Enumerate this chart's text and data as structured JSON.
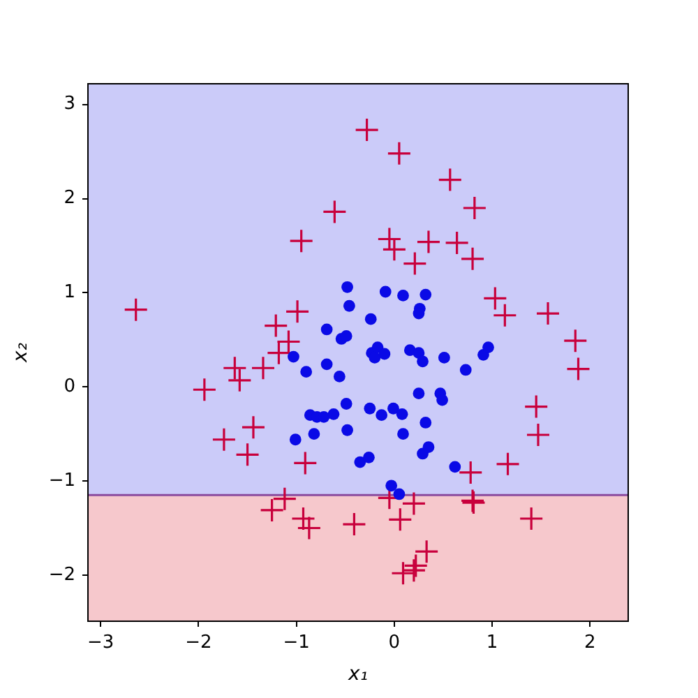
{
  "chart_data": {
    "type": "scatter",
    "xlabel": "x₁",
    "ylabel": "x₂",
    "xlim": [
      -3.13,
      2.39
    ],
    "ylim": [
      -2.49,
      3.22
    ],
    "xticks": [
      -3,
      -2,
      -1,
      0,
      1,
      2
    ],
    "yticks": [
      -2,
      -1,
      0,
      1,
      2,
      3
    ],
    "bands": [
      {
        "axis": "y",
        "from": -2.49,
        "to": -1.15,
        "color": "#f6c8cc"
      },
      {
        "axis": "y",
        "from": -1.15,
        "to": 3.22,
        "color": "#cbcbf9"
      }
    ],
    "ref_lines": [
      {
        "axis": "y",
        "value": -1.15,
        "color": "#8a4a9e"
      }
    ],
    "series": [
      {
        "color": "#0a0ae6",
        "marker": "circle",
        "x": [
          -0.69,
          -0.54,
          -0.49,
          -1.03,
          -0.9,
          -0.69,
          -0.56,
          -0.49,
          -0.86,
          -0.79,
          -0.72,
          -0.62,
          -0.82,
          -1.01,
          -0.48,
          -0.35,
          -0.26,
          -0.48,
          -0.46,
          -0.09,
          0.09,
          0.32,
          0.26,
          0.25,
          -0.24,
          -0.23,
          -0.17,
          -0.2,
          -0.1,
          0.16,
          0.25,
          0.29,
          0.51,
          0.73,
          0.91,
          0.96,
          0.25,
          0.47,
          0.49,
          -0.25,
          -0.13,
          -0.01,
          0.08,
          0.32,
          0.09,
          0.29,
          0.35,
          0.62,
          -0.03,
          0.05
        ],
        "values": [
          0.61,
          0.51,
          0.54,
          0.32,
          0.16,
          0.24,
          0.11,
          -0.18,
          -0.3,
          -0.32,
          -0.32,
          -0.29,
          -0.5,
          -0.56,
          -0.46,
          -0.8,
          -0.75,
          1.06,
          0.86,
          1.01,
          0.97,
          0.98,
          0.83,
          0.78,
          0.72,
          0.36,
          0.42,
          0.31,
          0.35,
          0.39,
          0.36,
          0.27,
          0.31,
          0.18,
          0.34,
          0.42,
          -0.07,
          -0.07,
          -0.14,
          -0.23,
          -0.3,
          -0.23,
          -0.29,
          -0.38,
          -0.5,
          -0.71,
          -0.64,
          -0.85,
          -1.05,
          -1.14
        ]
      },
      {
        "color": "#c8003c",
        "marker": "cross",
        "x": [
          -0.28,
          0.05,
          0.57,
          -0.61,
          -0.95,
          0.82,
          -0.05,
          0.0,
          0.35,
          0.64,
          0.21,
          0.8,
          1.03,
          1.13,
          1.57,
          1.85,
          1.88,
          1.45,
          1.47,
          1.16,
          0.78,
          0.8,
          0.81,
          1.4,
          0.2,
          0.06,
          -0.05,
          -0.41,
          0.33,
          0.22,
          0.2,
          0.09,
          -1.21,
          -1.08,
          -1.18,
          -0.99,
          -2.64,
          -1.63,
          -1.58,
          -1.34,
          -1.94,
          -1.44,
          -1.74,
          -1.5,
          -0.91,
          -1.12,
          -1.25,
          -0.93,
          -0.87
        ],
        "values": [
          2.73,
          2.48,
          2.2,
          1.86,
          1.55,
          1.9,
          1.57,
          1.46,
          1.54,
          1.53,
          1.31,
          1.36,
          0.94,
          0.76,
          0.78,
          0.49,
          0.19,
          -0.21,
          -0.51,
          -0.82,
          -0.91,
          -1.21,
          -1.23,
          -1.4,
          -1.24,
          -1.41,
          -1.18,
          -1.46,
          -1.75,
          -1.9,
          -1.95,
          -1.98,
          0.65,
          0.48,
          0.36,
          0.8,
          0.82,
          0.2,
          0.07,
          0.2,
          -0.03,
          -0.43,
          -0.56,
          -0.72,
          -0.81,
          -1.19,
          -1.31,
          -1.4,
          -1.5
        ]
      }
    ]
  }
}
